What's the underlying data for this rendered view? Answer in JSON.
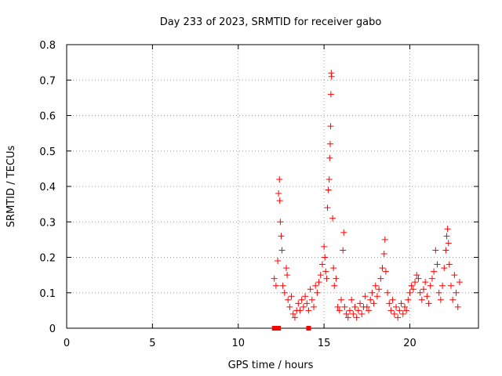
{
  "chart_data": {
    "type": "scatter",
    "title": "Day 233 of 2023, SRMTID for receiver gabo",
    "xlabel": "GPS time / hours",
    "ylabel": "SRMTID / TECUs",
    "xlim": [
      0,
      24
    ],
    "ylim": [
      0,
      0.8
    ],
    "x_ticks": [
      0,
      5,
      10,
      15,
      20
    ],
    "x_tick_labels": [
      "0",
      "5",
      "10",
      "15",
      "20"
    ],
    "y_ticks": [
      0,
      0.1,
      0.2,
      0.3,
      0.4,
      0.5,
      0.6,
      0.7,
      0.8
    ],
    "y_tick_labels": [
      "0",
      "0.1",
      "0.2",
      "0.3",
      "0.4",
      "0.5",
      "0.6",
      "0.7",
      "0.8"
    ],
    "grid": true,
    "series": [
      {
        "name": "SRMTID",
        "marker": "plus",
        "color": "#ff0000",
        "points": [
          [
            12.1,
            0.14
          ],
          [
            12.2,
            0.12
          ],
          [
            12.3,
            0.19
          ],
          [
            12.35,
            0.38
          ],
          [
            12.4,
            0.42
          ],
          [
            12.42,
            0.36
          ],
          [
            12.45,
            0.3
          ],
          [
            12.5,
            0.26
          ],
          [
            12.55,
            0.22
          ],
          [
            12.6,
            0.12
          ],
          [
            12.7,
            0.1
          ],
          [
            12.8,
            0.17
          ],
          [
            12.85,
            0.15
          ],
          [
            12.9,
            0.08
          ],
          [
            13.0,
            0.06
          ],
          [
            13.1,
            0.09
          ],
          [
            13.2,
            0.04
          ],
          [
            13.3,
            0.03
          ],
          [
            13.4,
            0.05
          ],
          [
            13.5,
            0.07
          ],
          [
            13.6,
            0.05
          ],
          [
            13.7,
            0.08
          ],
          [
            13.8,
            0.06
          ],
          [
            13.9,
            0.09
          ],
          [
            14.0,
            0.07
          ],
          [
            14.1,
            0.05
          ],
          [
            14.2,
            0.11
          ],
          [
            14.3,
            0.08
          ],
          [
            14.4,
            0.06
          ],
          [
            14.5,
            0.12
          ],
          [
            14.6,
            0.1
          ],
          [
            14.7,
            0.13
          ],
          [
            14.8,
            0.15
          ],
          [
            14.9,
            0.18
          ],
          [
            15.0,
            0.23
          ],
          [
            15.05,
            0.2
          ],
          [
            15.1,
            0.16
          ],
          [
            15.15,
            0.14
          ],
          [
            15.2,
            0.34
          ],
          [
            15.25,
            0.39
          ],
          [
            15.3,
            0.42
          ],
          [
            15.33,
            0.48
          ],
          [
            15.36,
            0.52
          ],
          [
            15.38,
            0.57
          ],
          [
            15.4,
            0.66
          ],
          [
            15.42,
            0.72
          ],
          [
            15.44,
            0.71
          ],
          [
            15.5,
            0.31
          ],
          [
            15.55,
            0.17
          ],
          [
            15.6,
            0.12
          ],
          [
            15.7,
            0.14
          ],
          [
            15.8,
            0.06
          ],
          [
            15.9,
            0.05
          ],
          [
            16.0,
            0.08
          ],
          [
            16.1,
            0.22
          ],
          [
            16.15,
            0.27
          ],
          [
            16.2,
            0.06
          ],
          [
            16.3,
            0.04
          ],
          [
            16.4,
            0.03
          ],
          [
            16.5,
            0.05
          ],
          [
            16.6,
            0.08
          ],
          [
            16.7,
            0.04
          ],
          [
            16.8,
            0.06
          ],
          [
            16.9,
            0.03
          ],
          [
            17.0,
            0.05
          ],
          [
            17.1,
            0.07
          ],
          [
            17.2,
            0.04
          ],
          [
            17.3,
            0.06
          ],
          [
            17.4,
            0.09
          ],
          [
            17.5,
            0.06
          ],
          [
            17.6,
            0.05
          ],
          [
            17.7,
            0.08
          ],
          [
            17.8,
            0.1
          ],
          [
            17.9,
            0.07
          ],
          [
            18.0,
            0.12
          ],
          [
            18.1,
            0.09
          ],
          [
            18.2,
            0.11
          ],
          [
            18.3,
            0.14
          ],
          [
            18.4,
            0.17
          ],
          [
            18.5,
            0.21
          ],
          [
            18.55,
            0.25
          ],
          [
            18.6,
            0.16
          ],
          [
            18.7,
            0.1
          ],
          [
            18.8,
            0.07
          ],
          [
            18.9,
            0.05
          ],
          [
            19.0,
            0.08
          ],
          [
            19.1,
            0.04
          ],
          [
            19.2,
            0.06
          ],
          [
            19.3,
            0.03
          ],
          [
            19.4,
            0.05
          ],
          [
            19.5,
            0.07
          ],
          [
            19.6,
            0.04
          ],
          [
            19.7,
            0.06
          ],
          [
            19.8,
            0.05
          ],
          [
            19.9,
            0.08
          ],
          [
            20.0,
            0.1
          ],
          [
            20.1,
            0.12
          ],
          [
            20.2,
            0.11
          ],
          [
            20.3,
            0.13
          ],
          [
            20.4,
            0.15
          ],
          [
            20.5,
            0.14
          ],
          [
            20.6,
            0.1
          ],
          [
            20.7,
            0.08
          ],
          [
            20.8,
            0.11
          ],
          [
            20.9,
            0.13
          ],
          [
            21.0,
            0.09
          ],
          [
            21.1,
            0.07
          ],
          [
            21.2,
            0.12
          ],
          [
            21.3,
            0.14
          ],
          [
            21.4,
            0.16
          ],
          [
            21.5,
            0.22
          ],
          [
            21.6,
            0.18
          ],
          [
            21.7,
            0.1
          ],
          [
            21.8,
            0.08
          ],
          [
            21.9,
            0.12
          ],
          [
            22.0,
            0.17
          ],
          [
            22.1,
            0.22
          ],
          [
            22.15,
            0.26
          ],
          [
            22.2,
            0.28
          ],
          [
            22.25,
            0.24
          ],
          [
            22.3,
            0.18
          ],
          [
            22.4,
            0.12
          ],
          [
            22.5,
            0.08
          ],
          [
            22.6,
            0.15
          ],
          [
            22.7,
            0.1
          ],
          [
            22.8,
            0.06
          ],
          [
            22.9,
            0.13
          ]
        ]
      },
      {
        "name": "SRMTID-zero",
        "marker": "square",
        "color": "#ff0000",
        "points": [
          [
            12.1,
            0
          ],
          [
            12.35,
            0
          ],
          [
            14.1,
            0
          ]
        ]
      }
    ]
  }
}
